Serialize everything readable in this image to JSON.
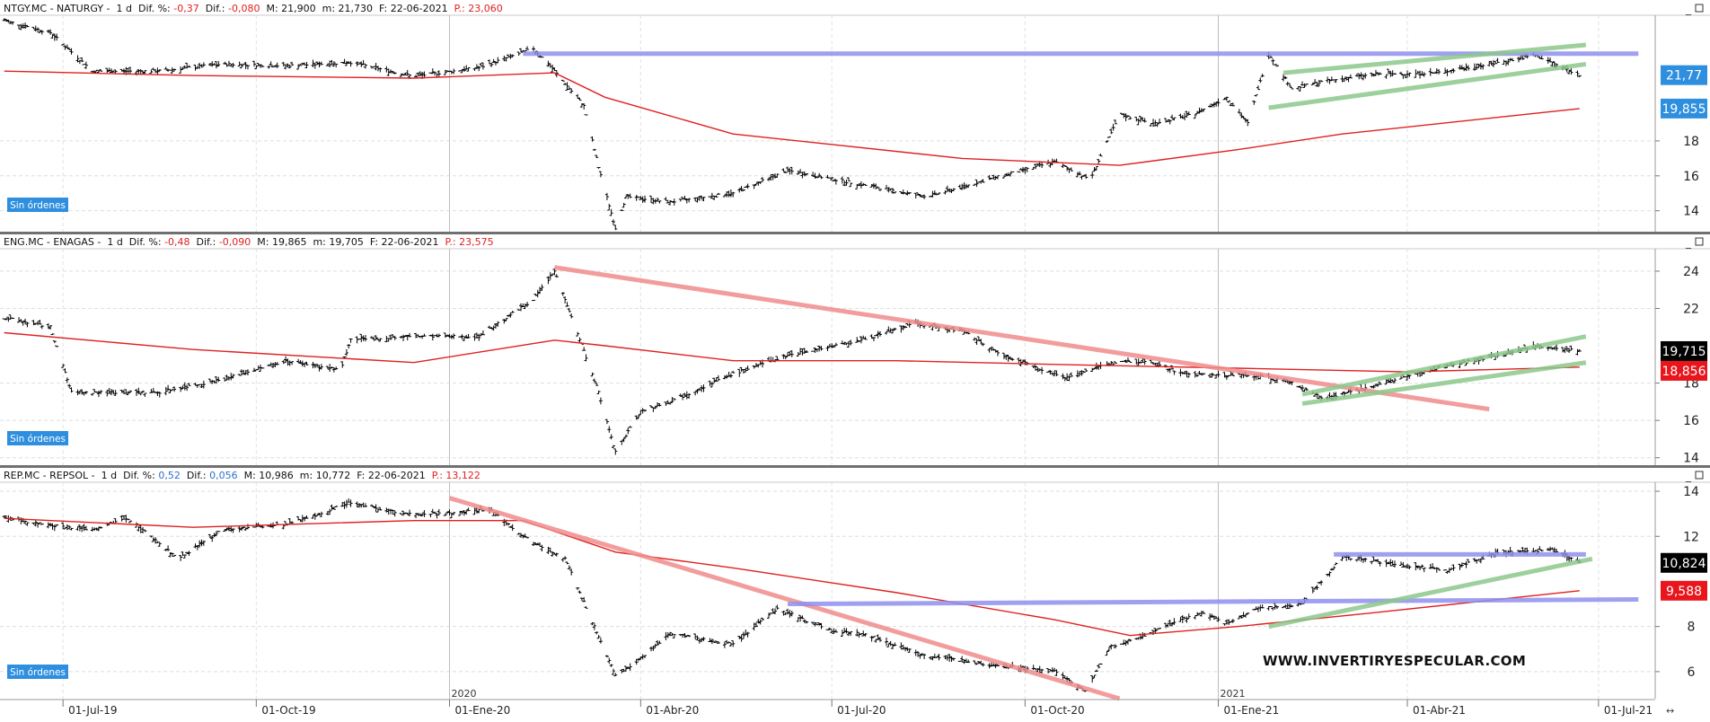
{
  "watermark": "WWW.INVERTIRYESPECULAR.COM",
  "panels": [
    {
      "header": {
        "prefix": "NTGY.MC - NATURGY -  1 d  Dif. %: ",
        "dif_pct": "-0,37",
        "dif_label": "  Dif.: ",
        "dif": "-0,080",
        "rest": "  M: 21,900  m: 21,730  F: 22-06-2021  ",
        "p": "P.: 23,060"
      },
      "badge": "Sin órdenes",
      "price_tag": "21,77",
      "ma_tag": "19,855"
    },
    {
      "header": {
        "prefix": "ENG.MC - ENAGAS -  1 d  Dif. %: ",
        "dif_pct": "-0,48",
        "dif_label": "  Dif.: ",
        "dif": "-0,090",
        "rest": "  M: 19,865  m: 19,705  F: 22-06-2021  ",
        "p": "P.: 23,575"
      },
      "badge": "Sin órdenes",
      "price_tag": "19,715",
      "ma_tag": "18,856"
    },
    {
      "header": {
        "prefix": "REP.MC - REPSOL -  1 d  Dif. %: ",
        "dif_pct": "0,52",
        "dif_label": "  Dif.: ",
        "dif": "0,056",
        "rest": "  M: 10,986  m: 10,772  F: 22-06-2021  ",
        "p": "P.: 13,122"
      },
      "badge": "Sin órdenes",
      "price_tag": "10,824",
      "ma_tag": "9,588"
    }
  ],
  "colors": {
    "bars": "#000000",
    "moving_average": "#e02020",
    "price_tag_bg_naturgy": "#2f8fdf",
    "price_tag_bg": "#000000",
    "ma_tag_bg": "#e8161c",
    "resistance_line": "#8f8fef",
    "downtrend_line": "#f08c8c",
    "channel_line": "#8cc88c",
    "badge_bg": "#2f8fdf",
    "dif_negative": "#e02020",
    "dif_positive": "#2f6fd0"
  },
  "chart_data": [
    {
      "type": "ohlc-bar",
      "title": "NTGY.MC - NATURGY - 1 d",
      "date_range": [
        "2019-06-01",
        "2021-06-22"
      ],
      "ylim": [
        12.8,
        25.2
      ],
      "y_ticks": [
        14,
        16,
        18
      ],
      "close_path": [
        [
          "2019-06-03",
          24.9
        ],
        [
          "2019-06-25",
          24.2
        ],
        [
          "2019-07-15",
          22.0
        ],
        [
          "2019-08-15",
          22.0
        ],
        [
          "2019-09-15",
          22.4
        ],
        [
          "2019-10-15",
          22.3
        ],
        [
          "2019-11-15",
          22.5
        ],
        [
          "2019-12-15",
          21.7
        ],
        [
          "2020-01-15",
          22.2
        ],
        [
          "2020-02-10",
          23.3
        ],
        [
          "2020-02-20",
          22.0
        ],
        [
          "2020-03-05",
          20.0
        ],
        [
          "2020-03-12",
          16.5
        ],
        [
          "2020-03-20",
          13.0
        ],
        [
          "2020-03-25",
          14.8
        ],
        [
          "2020-04-15",
          14.5
        ],
        [
          "2020-05-15",
          15.0
        ],
        [
          "2020-06-10",
          16.3
        ],
        [
          "2020-07-15",
          15.5
        ],
        [
          "2020-08-15",
          14.8
        ],
        [
          "2020-09-20",
          16.0
        ],
        [
          "2020-10-15",
          16.8
        ],
        [
          "2020-11-01",
          15.8
        ],
        [
          "2020-11-15",
          19.5
        ],
        [
          "2020-12-01",
          19.0
        ],
        [
          "2020-12-20",
          19.5
        ],
        [
          "2021-01-05",
          20.5
        ],
        [
          "2021-01-15",
          19.0
        ],
        [
          "2021-01-25",
          23.0
        ],
        [
          "2021-02-05",
          21.0
        ],
        [
          "2021-02-20",
          21.4
        ],
        [
          "2021-03-15",
          21.8
        ],
        [
          "2021-04-15",
          21.9
        ],
        [
          "2021-05-15",
          22.5
        ],
        [
          "2021-06-01",
          22.9
        ],
        [
          "2021-06-22",
          21.77
        ]
      ],
      "moving_average_path": [
        [
          "2019-06-03",
          22.0
        ],
        [
          "2019-09-01",
          21.75
        ],
        [
          "2019-12-15",
          21.6
        ],
        [
          "2020-02-20",
          21.9
        ],
        [
          "2020-03-15",
          20.5
        ],
        [
          "2020-05-15",
          18.4
        ],
        [
          "2020-09-01",
          17.0
        ],
        [
          "2020-11-15",
          16.6
        ],
        [
          "2021-01-10",
          17.5
        ],
        [
          "2021-03-01",
          18.4
        ],
        [
          "2021-06-22",
          19.855
        ]
      ],
      "lines": [
        {
          "kind": "resistance",
          "points": [
            [
              "2020-02-05",
              23.0
            ],
            [
              "2021-07-20",
              23.0
            ]
          ]
        },
        {
          "kind": "channel-upper",
          "points": [
            [
              "2021-02-01",
              21.9
            ],
            [
              "2021-06-25",
              23.5
            ]
          ]
        },
        {
          "kind": "channel-lower",
          "points": [
            [
              "2021-01-25",
              19.9
            ],
            [
              "2021-06-25",
              22.4
            ]
          ]
        }
      ],
      "last_price": 21.77,
      "moving_average_last": 19.855
    },
    {
      "type": "ohlc-bar",
      "title": "ENG.MC - ENAGAS - 1 d",
      "date_range": [
        "2019-06-01",
        "2021-06-22"
      ],
      "ylim": [
        13.6,
        25.2
      ],
      "y_ticks": [
        14,
        16,
        18,
        22,
        24
      ],
      "close_path": [
        [
          "2019-06-03",
          21.5
        ],
        [
          "2019-06-25",
          21.0
        ],
        [
          "2019-07-05",
          17.5
        ],
        [
          "2019-08-15",
          17.5
        ],
        [
          "2019-09-15",
          18.2
        ],
        [
          "2019-10-15",
          19.2
        ],
        [
          "2019-11-10",
          18.7
        ],
        [
          "2019-11-15",
          20.3
        ],
        [
          "2019-12-15",
          20.5
        ],
        [
          "2020-01-15",
          20.5
        ],
        [
          "2020-02-10",
          22.5
        ],
        [
          "2020-02-20",
          24.0
        ],
        [
          "2020-03-01",
          21.0
        ],
        [
          "2020-03-12",
          17.5
        ],
        [
          "2020-03-20",
          14.3
        ],
        [
          "2020-04-01",
          16.5
        ],
        [
          "2020-04-15",
          17.0
        ],
        [
          "2020-05-15",
          18.5
        ],
        [
          "2020-06-10",
          19.5
        ],
        [
          "2020-07-15",
          20.3
        ],
        [
          "2020-08-10",
          21.2
        ],
        [
          "2020-09-01",
          20.8
        ],
        [
          "2020-09-20",
          19.5
        ],
        [
          "2020-10-20",
          18.3
        ],
        [
          "2020-11-15",
          19.2
        ],
        [
          "2020-12-01",
          19.1
        ],
        [
          "2020-12-15",
          18.5
        ],
        [
          "2021-01-05",
          18.4
        ],
        [
          "2021-01-20",
          18.4
        ],
        [
          "2021-02-05",
          18.0
        ],
        [
          "2021-02-20",
          17.2
        ],
        [
          "2021-03-15",
          17.8
        ],
        [
          "2021-04-15",
          18.8
        ],
        [
          "2021-05-15",
          19.5
        ],
        [
          "2021-06-01",
          20.0
        ],
        [
          "2021-06-22",
          19.715
        ]
      ],
      "moving_average_path": [
        [
          "2019-06-03",
          20.7
        ],
        [
          "2019-09-01",
          19.8
        ],
        [
          "2019-12-15",
          19.1
        ],
        [
          "2020-02-20",
          20.3
        ],
        [
          "2020-03-15",
          20.0
        ],
        [
          "2020-05-15",
          19.2
        ],
        [
          "2020-08-01",
          19.2
        ],
        [
          "2020-10-15",
          19.0
        ],
        [
          "2021-01-10",
          18.8
        ],
        [
          "2021-04-01",
          18.6
        ],
        [
          "2021-06-22",
          18.856
        ]
      ],
      "lines": [
        {
          "kind": "downtrend",
          "points": [
            [
              "2020-02-20",
              24.2
            ],
            [
              "2021-05-10",
              16.6
            ]
          ]
        },
        {
          "kind": "channel-upper",
          "points": [
            [
              "2021-02-10",
              17.4
            ],
            [
              "2021-06-25",
              20.5
            ]
          ]
        },
        {
          "kind": "channel-lower",
          "points": [
            [
              "2021-02-10",
              16.9
            ],
            [
              "2021-06-25",
              19.1
            ]
          ]
        }
      ],
      "last_price": 19.715,
      "moving_average_last": 18.856
    },
    {
      "type": "ohlc-bar",
      "title": "REP.MC - REPSOL - 1 d",
      "date_range": [
        "2019-06-01",
        "2021-06-22"
      ],
      "ylim": [
        4.8,
        14.4
      ],
      "y_ticks": [
        6,
        8,
        12,
        14
      ],
      "x_ticks": [
        "01-Jul-19",
        "01-Oct-19",
        "01-Ene-20",
        "01-Abr-20",
        "01-Jul-20",
        "01-Oct-20",
        "01-Ene-21",
        "01-Abr-21",
        "01-Jul-21"
      ],
      "year_markers": [
        "2020",
        "2021"
      ],
      "close_path": [
        [
          "2019-06-03",
          12.8
        ],
        [
          "2019-06-25",
          12.5
        ],
        [
          "2019-07-15",
          12.3
        ],
        [
          "2019-08-01",
          12.8
        ],
        [
          "2019-08-25",
          11.0
        ],
        [
          "2019-09-15",
          12.3
        ],
        [
          "2019-10-15",
          12.5
        ],
        [
          "2019-11-15",
          13.5
        ],
        [
          "2019-12-10",
          13.0
        ],
        [
          "2020-01-01",
          13.0
        ],
        [
          "2020-01-20",
          13.2
        ],
        [
          "2020-02-05",
          12.0
        ],
        [
          "2020-02-25",
          11.0
        ],
        [
          "2020-03-10",
          8.0
        ],
        [
          "2020-03-20",
          5.8
        ],
        [
          "2020-04-01",
          6.6
        ],
        [
          "2020-04-15",
          7.7
        ],
        [
          "2020-05-15",
          7.2
        ],
        [
          "2020-06-05",
          8.8
        ],
        [
          "2020-07-01",
          7.8
        ],
        [
          "2020-07-15",
          7.7
        ],
        [
          "2020-08-15",
          6.7
        ],
        [
          "2020-09-15",
          6.3
        ],
        [
          "2020-10-15",
          6.0
        ],
        [
          "2020-10-30",
          5.1
        ],
        [
          "2020-11-10",
          7.1
        ],
        [
          "2020-11-25",
          7.5
        ],
        [
          "2020-12-10",
          8.2
        ],
        [
          "2020-12-25",
          8.6
        ],
        [
          "2021-01-05",
          8.1
        ],
        [
          "2021-01-20",
          8.8
        ],
        [
          "2021-02-10",
          9.0
        ],
        [
          "2021-03-01",
          11.1
        ],
        [
          "2021-04-01",
          10.7
        ],
        [
          "2021-04-20",
          10.5
        ],
        [
          "2021-05-15",
          11.3
        ],
        [
          "2021-06-10",
          11.4
        ],
        [
          "2021-06-22",
          10.824
        ]
      ],
      "moving_average_path": [
        [
          "2019-06-03",
          12.8
        ],
        [
          "2019-09-01",
          12.4
        ],
        [
          "2019-12-15",
          12.7
        ],
        [
          "2020-02-05",
          12.7
        ],
        [
          "2020-03-20",
          11.3
        ],
        [
          "2020-05-15",
          10.6
        ],
        [
          "2020-08-01",
          9.5
        ],
        [
          "2020-10-15",
          8.3
        ],
        [
          "2020-11-20",
          7.6
        ],
        [
          "2021-01-10",
          8.0
        ],
        [
          "2021-03-15",
          8.6
        ],
        [
          "2021-06-22",
          9.588
        ]
      ],
      "lines": [
        {
          "kind": "downtrend",
          "points": [
            [
              "2020-01-01",
              13.7
            ],
            [
              "2020-11-15",
              4.8
            ]
          ]
        },
        {
          "kind": "resistance",
          "points": [
            [
              "2020-06-10",
              9.0
            ],
            [
              "2021-07-20",
              9.2
            ]
          ]
        },
        {
          "kind": "resistance",
          "points": [
            [
              "2021-02-25",
              11.2
            ],
            [
              "2021-06-25",
              11.2
            ]
          ]
        },
        {
          "kind": "channel-lower",
          "points": [
            [
              "2021-01-25",
              8.0
            ],
            [
              "2021-06-28",
              11.0
            ]
          ]
        }
      ],
      "last_price": 10.824,
      "moving_average_last": 9.588
    }
  ]
}
